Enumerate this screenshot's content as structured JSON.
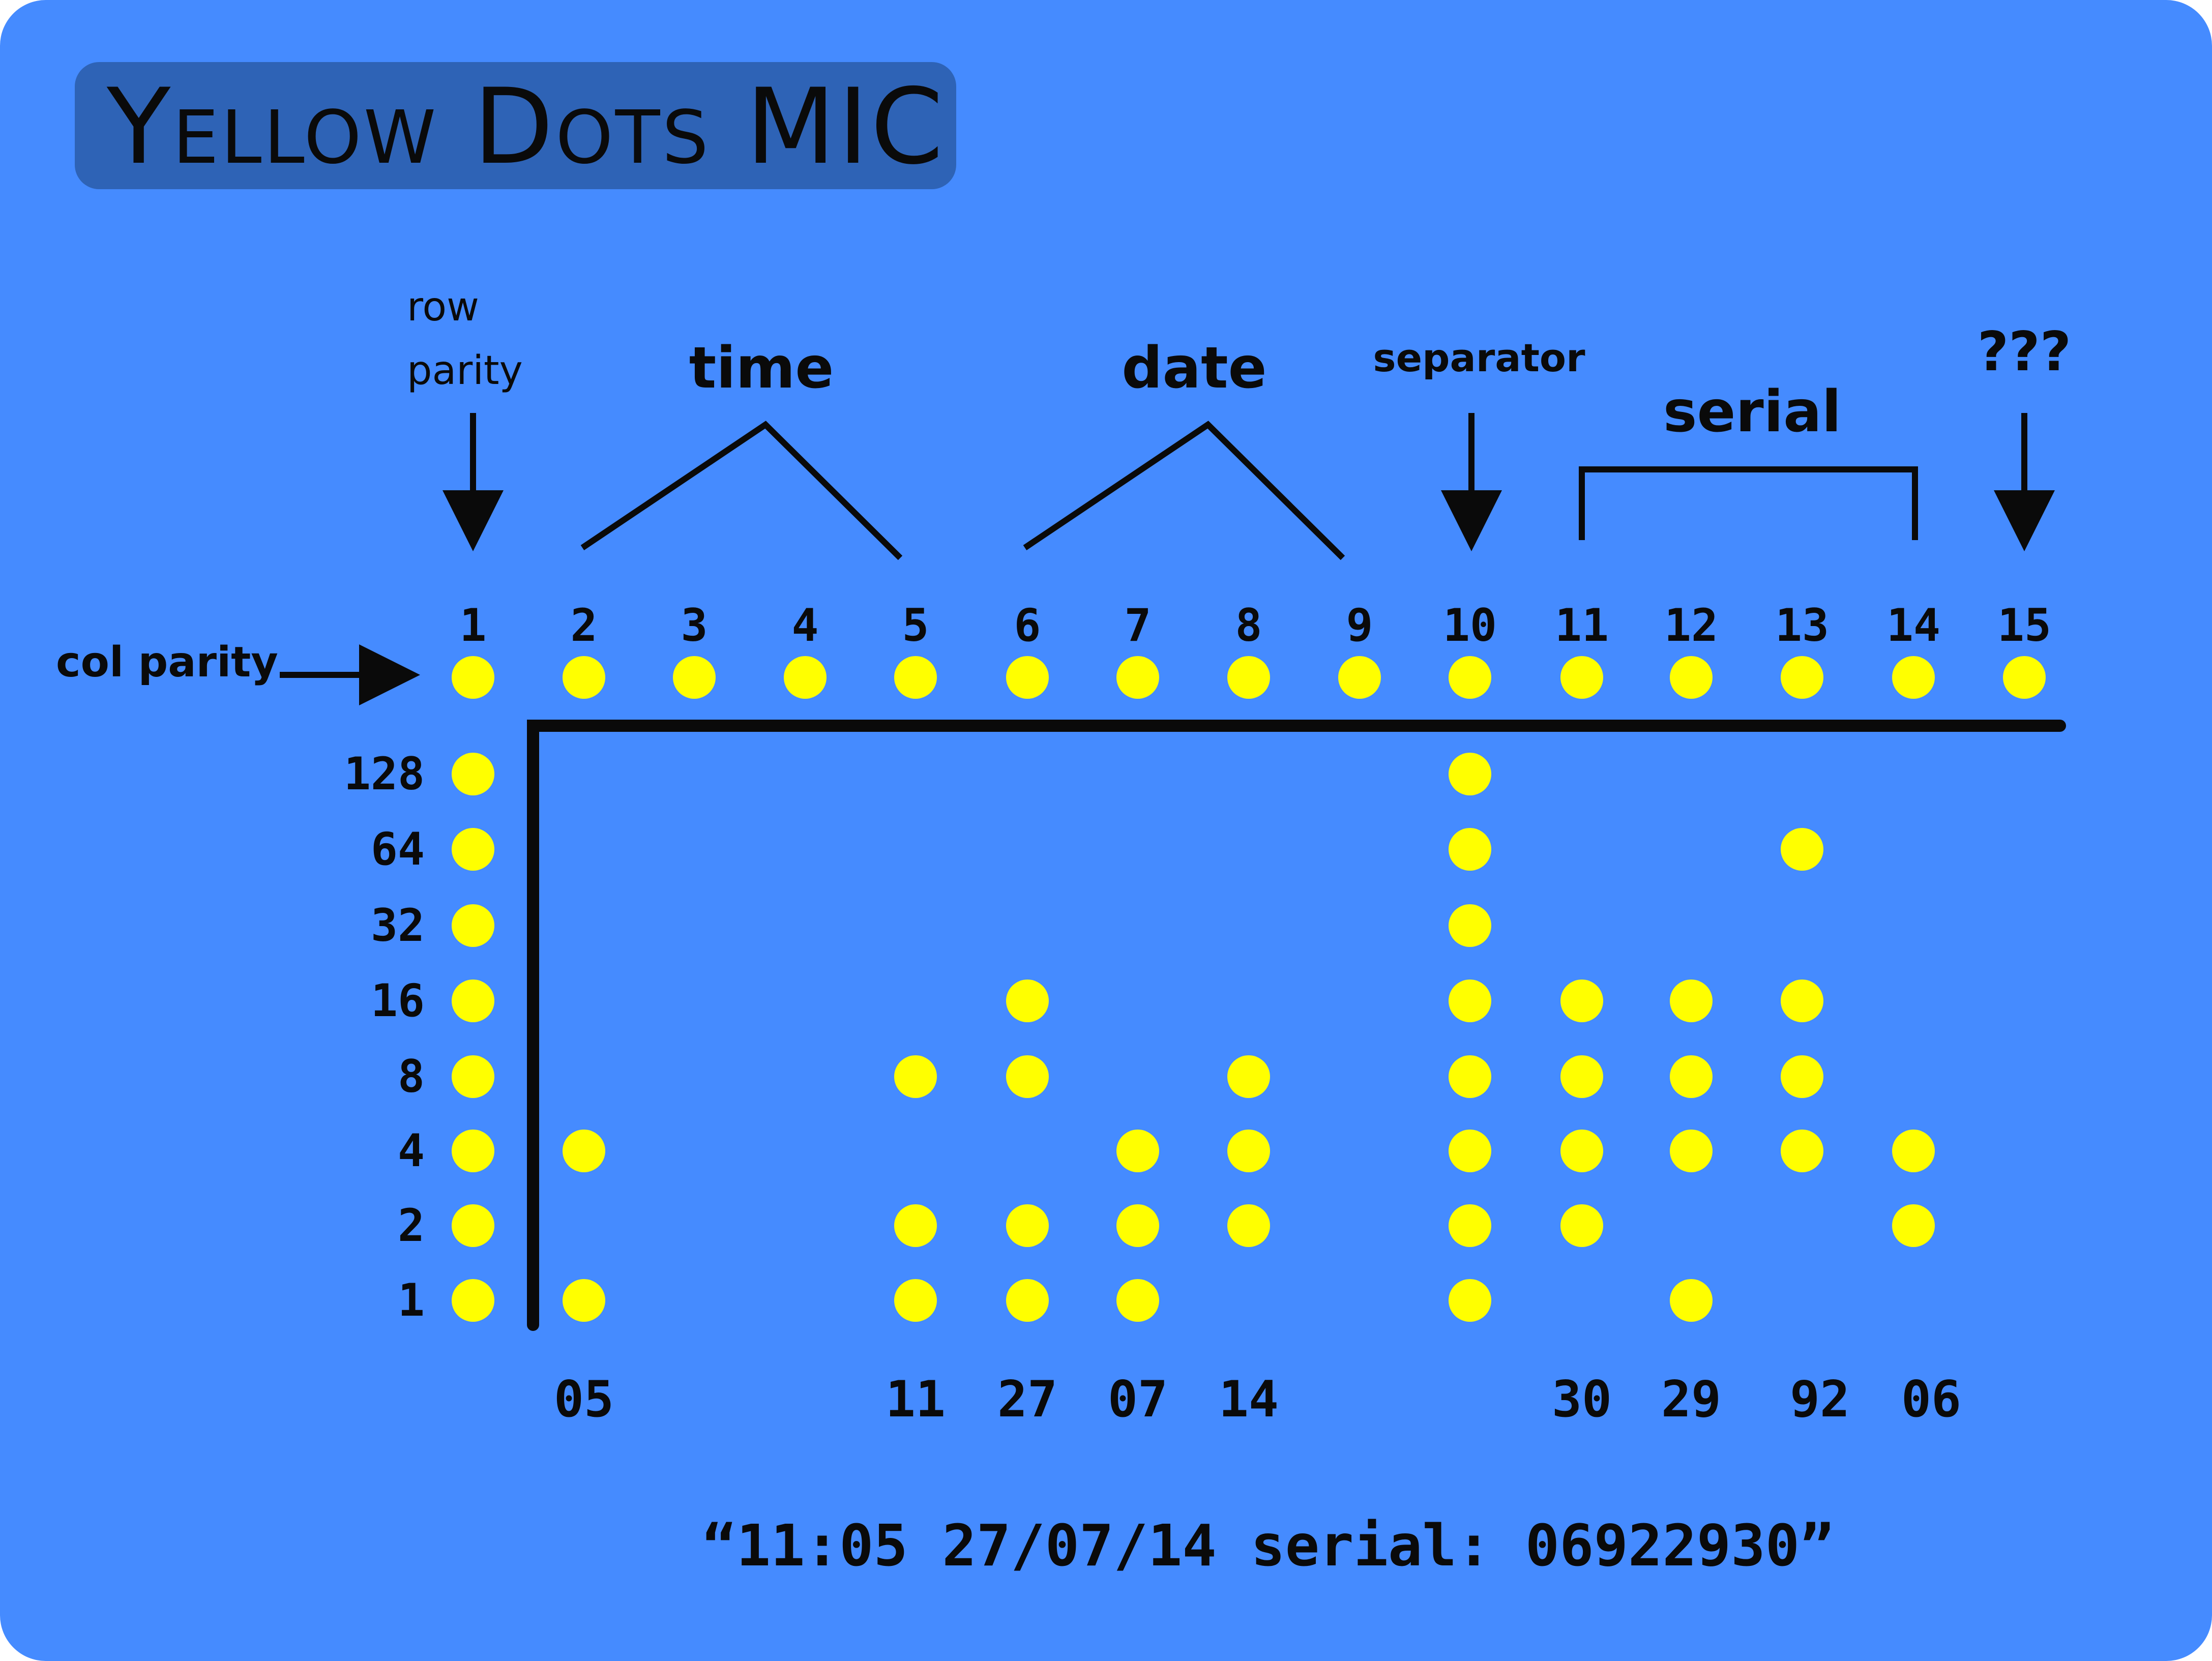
{
  "title": "Yellow Dots MIC",
  "colors": {
    "background": "#458bff",
    "title_box": "#2e63b6",
    "dot": "#ffff00",
    "ink": "#0a0a0a"
  },
  "annotations": {
    "row_parity": [
      "row",
      "parity"
    ],
    "time": "time",
    "date": "date",
    "separator": "separator",
    "serial": "serial",
    "unknown": "???",
    "col_parity": "col parity"
  },
  "column_numbers": [
    "1",
    "2",
    "3",
    "4",
    "5",
    "6",
    "7",
    "8",
    "9",
    "10",
    "11",
    "12",
    "13",
    "14",
    "15"
  ],
  "row_values": [
    "128",
    "64",
    "32",
    "16",
    "8",
    "4",
    "2",
    "1"
  ],
  "column_dots": [
    {
      "column": 1,
      "bits": [
        128,
        64,
        32,
        16,
        8,
        4,
        2,
        1
      ]
    },
    {
      "column": 2,
      "bits": [
        4,
        1
      ]
    },
    {
      "column": 5,
      "bits": [
        8,
        2,
        1
      ]
    },
    {
      "column": 6,
      "bits": [
        16,
        8,
        2,
        1
      ]
    },
    {
      "column": 7,
      "bits": [
        4,
        2,
        1
      ]
    },
    {
      "column": 8,
      "bits": [
        8,
        4,
        2
      ]
    },
    {
      "column": 10,
      "bits": [
        128,
        64,
        32,
        16,
        8,
        4,
        2,
        1
      ]
    },
    {
      "column": 11,
      "bits": [
        16,
        8,
        4,
        2
      ]
    },
    {
      "column": 12,
      "bits": [
        16,
        8,
        4,
        1
      ]
    },
    {
      "column": 13,
      "bits": [
        64,
        16,
        8,
        4
      ]
    },
    {
      "column": 14,
      "bits": [
        4,
        2
      ]
    }
  ],
  "decoded_values": [
    {
      "column": 2,
      "text": "05"
    },
    {
      "column": 5,
      "text": "11"
    },
    {
      "column": 6,
      "text": "27"
    },
    {
      "column": 7,
      "text": "07"
    },
    {
      "column": 8,
      "text": "14"
    },
    {
      "column": 11,
      "text": "30"
    },
    {
      "column": 12,
      "text": "29"
    },
    {
      "column": 13,
      "text": "92"
    },
    {
      "column": 14,
      "text": "06"
    }
  ],
  "decoded_message": "“11:05 27/07/14 serial: 06922930”"
}
